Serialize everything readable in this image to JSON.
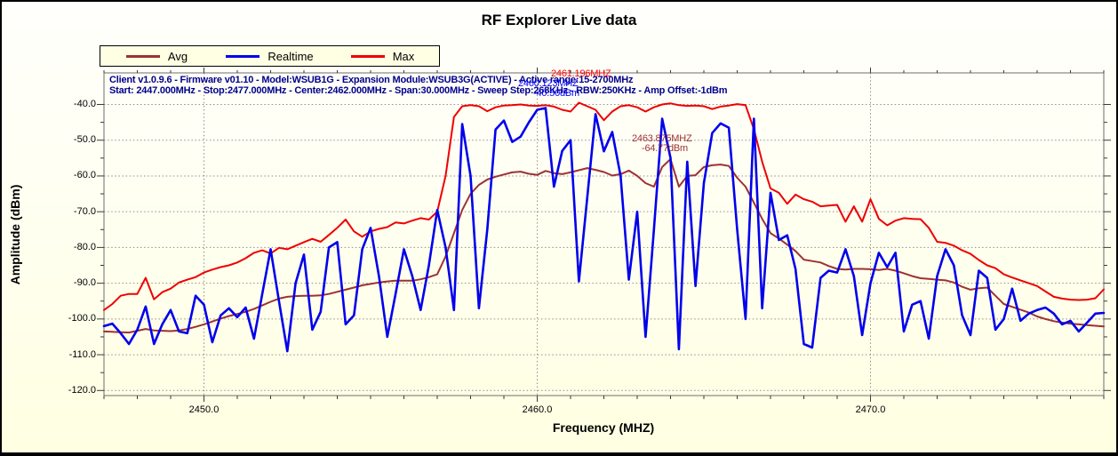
{
  "title": "RF Explorer Live data",
  "legend": {
    "items": [
      {
        "label": "Avg",
        "color": "#9C3232"
      },
      {
        "label": "Realtime",
        "color": "#0000EE"
      },
      {
        "label": "Max",
        "color": "#EE0000"
      }
    ]
  },
  "info": {
    "line1": "Client v1.0.9.6 - Firmware v01.10 - Model:WSUB1G - Expansion Module:WSUB3G(ACTIVE) - Active range:15-2700MHz",
    "line2": "Start: 2447.000MHz - Stop:2477.000MHz - Center:2462.000MHz - Span:30.000MHz - Sweep Step:268KHz - RBW:250KHz - Amp Offset:-1dBm"
  },
  "markers": {
    "max": {
      "freq": "2461.196MHZ",
      "color": "#FF0000"
    },
    "realtime": {
      "freq": "2460.123MHZ",
      "amp": "-40.50dBm",
      "color": "#0000FF"
    },
    "avg": {
      "freq": "2463.875MHZ",
      "amp": "-64.77dBm",
      "color": "#9C3232"
    }
  },
  "axes": {
    "x_label": "Frequency (MHZ)",
    "y_label": "Amplitude (dBm)",
    "x_ticks": [
      "2450.0",
      "2460.0",
      "2470.0"
    ],
    "y_ticks": [
      "-40.0",
      "-50.0",
      "-60.0",
      "-70.0",
      "-80.0",
      "-90.0",
      "-100.0",
      "-110.0",
      "-120.0"
    ]
  },
  "chart_data": {
    "type": "line",
    "title": "RF Explorer Live data",
    "xlabel": "Frequency (MHZ)",
    "ylabel": "Amplitude (dBm)",
    "xlim": [
      2447,
      2477
    ],
    "ylim": [
      -120,
      -40
    ],
    "grid": true,
    "legend_position": "top-left",
    "x_start": 2447.0,
    "x_step": 0.25,
    "series": [
      {
        "name": "Avg",
        "color": "#9C3232",
        "values": [
          -103.5,
          -103.6,
          -103.7,
          -103.8,
          -103.3,
          -102.8,
          -103.2,
          -103.3,
          -103.4,
          -103.2,
          -102.8,
          -102.2,
          -101.5,
          -100.7,
          -99.9,
          -99.2,
          -98.6,
          -98.0,
          -97.2,
          -96.2,
          -95.2,
          -94.3,
          -93.8,
          -93.6,
          -93.5,
          -93.5,
          -93.4,
          -93.0,
          -92.4,
          -91.8,
          -91.2,
          -90.6,
          -90.2,
          -89.8,
          -89.5,
          -89.3,
          -89.3,
          -89.3,
          -88.9,
          -88.3,
          -87.5,
          -82.5,
          -76.0,
          -69.5,
          -65.0,
          -62.5,
          -61.0,
          -60.2,
          -59.6,
          -59.0,
          -58.8,
          -59.4,
          -59.7,
          -58.6,
          -59.2,
          -59.5,
          -59.0,
          -58.4,
          -57.8,
          -58.3,
          -58.9,
          -59.9,
          -59.5,
          -58.5,
          -60.0,
          -62.0,
          -63.0,
          -57.5,
          -55.3,
          -63.0,
          -60.0,
          -59.8,
          -57.5,
          -57.0,
          -56.8,
          -57.2,
          -60.5,
          -63.0,
          -67.5,
          -72.0,
          -76.0,
          -77.5,
          -79.2,
          -81.0,
          -83.4,
          -83.8,
          -84.2,
          -85.2,
          -86.0,
          -86.2,
          -86.0,
          -86.0,
          -86.1,
          -86.3,
          -86.0,
          -86.5,
          -87.2,
          -88.0,
          -88.6,
          -88.8,
          -89.0,
          -89.2,
          -89.8,
          -91.0,
          -91.8,
          -91.4,
          -91.2,
          -93.5,
          -95.8,
          -96.6,
          -97.4,
          -98.2,
          -99.3,
          -100.0,
          -100.6,
          -101.0,
          -101.3,
          -101.5,
          -101.7,
          -101.9,
          -102.1
        ]
      },
      {
        "name": "Realtime",
        "color": "#0000EE",
        "values": [
          -102.0,
          -101.3,
          -104.0,
          -107.0,
          -103.0,
          -96.5,
          -107.0,
          -101.5,
          -97.5,
          -103.5,
          -104.0,
          -93.5,
          -96.0,
          -106.5,
          -99.0,
          -97.0,
          -99.5,
          -96.8,
          -105.5,
          -93.0,
          -80.5,
          -95.0,
          -109.0,
          -90.0,
          -82.0,
          -103.0,
          -98.0,
          -80.0,
          -78.5,
          -101.5,
          -99.0,
          -80.5,
          -74.5,
          -88.0,
          -105.0,
          -93.0,
          -80.5,
          -88.0,
          -97.5,
          -85.0,
          -69.5,
          -80.0,
          -97.5,
          -45.5,
          -60.0,
          -97.0,
          -75.0,
          -47.0,
          -44.5,
          -50.5,
          -49.0,
          -45.0,
          -41.5,
          -41.0,
          -63.0,
          -53.0,
          -50.0,
          -89.5,
          -66.0,
          -42.7,
          -53.1,
          -47.7,
          -60.0,
          -89.0,
          -70.0,
          -105.0,
          -75.0,
          -44.0,
          -55.0,
          -108.5,
          -56.0,
          -90.8,
          -62.0,
          -48.0,
          -45.3,
          -46.5,
          -75.0,
          -100.0,
          -44.0,
          -97.0,
          -64.7,
          -77.9,
          -76.6,
          -86.0,
          -107.0,
          -108.0,
          -88.5,
          -86.5,
          -87.0,
          -80.5,
          -88.0,
          -104.5,
          -90.0,
          -81.5,
          -85.5,
          -81.5,
          -103.5,
          -96.0,
          -95.0,
          -105.5,
          -88.0,
          -80.5,
          -85.0,
          -99.0,
          -104.5,
          -86.5,
          -88.5,
          -103.0,
          -100.0,
          -91.5,
          -100.5,
          -98.5,
          -97.5,
          -96.8,
          -98.5,
          -101.5,
          -100.5,
          -103.5,
          -101.0,
          -98.5,
          -98.3
        ]
      },
      {
        "name": "Max",
        "color": "#EE0000",
        "values": [
          -97.5,
          -95.8,
          -93.5,
          -93.0,
          -93.0,
          -88.5,
          -94.5,
          -92.5,
          -91.5,
          -89.8,
          -89.0,
          -88.3,
          -87.0,
          -86.2,
          -85.5,
          -85.0,
          -84.2,
          -83.0,
          -81.5,
          -80.8,
          -81.7,
          -80.1,
          -80.5,
          -79.5,
          -78.5,
          -77.6,
          -78.4,
          -76.5,
          -74.5,
          -72.2,
          -75.5,
          -77.0,
          -75.5,
          -74.8,
          -74.3,
          -73.0,
          -73.3,
          -72.5,
          -71.8,
          -72.2,
          -70.0,
          -60.0,
          -43.5,
          -40.5,
          -40.2,
          -40.5,
          -41.9,
          -40.8,
          -40.3,
          -40.2,
          -40.0,
          -40.3,
          -40.4,
          -40.2,
          -40.6,
          -41.5,
          -42.0,
          -39.5,
          -40.5,
          -41.5,
          -44.4,
          -42.0,
          -40.5,
          -40.2,
          -40.8,
          -42.0,
          -40.8,
          -40.0,
          -39.7,
          -40.2,
          -40.4,
          -40.3,
          -40.5,
          -41.3,
          -40.6,
          -40.3,
          -39.9,
          -40.2,
          -46.9,
          -56.0,
          -63.5,
          -64.7,
          -67.8,
          -65.2,
          -66.5,
          -67.2,
          -68.5,
          -68.3,
          -68.1,
          -72.8,
          -68.5,
          -72.8,
          -66.5,
          -72.0,
          -73.8,
          -72.5,
          -71.8,
          -72.0,
          -72.1,
          -74.5,
          -78.4,
          -78.7,
          -79.5,
          -80.8,
          -81.8,
          -83.5,
          -85.0,
          -85.8,
          -87.5,
          -88.4,
          -89.2,
          -90.0,
          -90.8,
          -92.3,
          -93.8,
          -94.3,
          -94.6,
          -94.7,
          -94.6,
          -94.2,
          -91.7
        ]
      }
    ]
  }
}
